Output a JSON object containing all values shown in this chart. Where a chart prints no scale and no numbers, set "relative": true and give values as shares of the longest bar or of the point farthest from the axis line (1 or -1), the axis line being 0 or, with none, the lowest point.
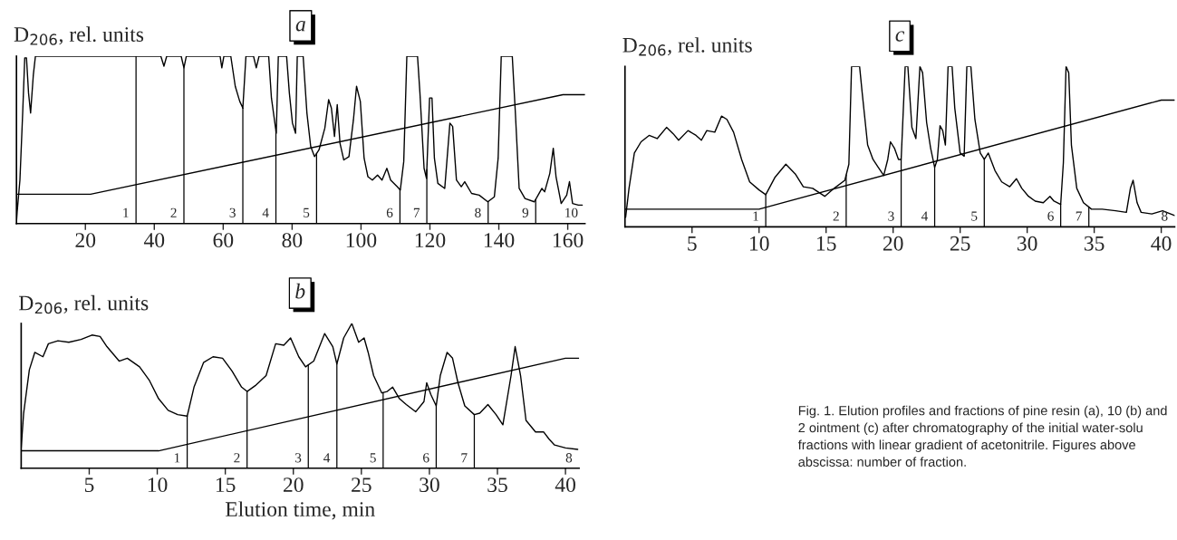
{
  "chart_data": [
    {
      "type": "line",
      "title": "a",
      "ylabel": "D$_{206}$, rel. units",
      "relative": true,
      "xlim": [
        0,
        165
      ],
      "xticks": [
        20,
        40,
        60,
        80,
        100,
        120,
        140,
        160
      ],
      "tick_labels": "x",
      "grid": false,
      "legend": false,
      "marker": "none",
      "line_style": "solid",
      "series": [
        {
          "color": "#000000",
          "x": [
            0,
            0.2,
            1.0,
            1.8,
            2.4,
            2.9,
            3.5,
            4.1,
            4.9,
            5.5,
            41.9,
            42.8,
            43.6,
            47.8,
            48.6,
            49.3,
            59.1,
            59.6,
            60.2,
            62.2,
            63.5,
            64.8,
            65.7,
            66.6,
            68.8,
            69.6,
            70.4,
            73.2,
            74.0,
            75.4,
            76.0,
            78.4,
            79.2,
            80.1,
            81.0,
            81.5,
            83.2,
            84.3,
            85.4,
            86.5,
            87.8,
            89.5,
            90.6,
            91.4,
            92.3,
            93.1,
            93.9,
            95.0,
            96.5,
            97.8,
            98.7,
            99.8,
            100.9,
            102.0,
            103.3,
            104.8,
            106.1,
            107.5,
            108.6,
            110.5,
            111.4,
            112.4,
            113.3,
            116.4,
            117.1,
            118.3,
            119.0,
            119.9,
            120.6,
            121.3,
            122.3,
            124.3,
            125.8,
            126.6,
            127.7,
            129.1,
            130.1,
            132.1,
            134.3,
            136.8,
            138.7,
            139.8,
            140.7,
            143.9,
            144.8,
            145.9,
            147.6,
            150.3,
            151.4,
            152.5,
            153.3,
            154.8,
            155.8,
            156.6,
            158.1,
            159.7,
            160.5,
            161.4,
            163.1,
            164.2
          ],
          "values": [
            0.01,
            0.07,
            0.26,
            0.66,
            0.99,
            0.99,
            0.78,
            0.66,
            0.89,
            1.0,
            1.0,
            0.94,
            1.0,
            1.0,
            0.93,
            1.0,
            1.0,
            0.93,
            1.0,
            1.0,
            0.82,
            0.73,
            0.69,
            1.0,
            1.0,
            0.93,
            1.0,
            1.0,
            0.75,
            0.54,
            1.0,
            1.0,
            0.78,
            0.6,
            0.54,
            1.0,
            1.0,
            0.66,
            0.46,
            0.4,
            0.44,
            0.57,
            0.74,
            0.69,
            0.52,
            0.71,
            0.48,
            0.38,
            0.4,
            0.62,
            0.82,
            0.73,
            0.39,
            0.28,
            0.26,
            0.29,
            0.26,
            0.33,
            0.26,
            0.22,
            0.2,
            0.37,
            1.0,
            1.0,
            0.78,
            0.33,
            0.27,
            0.75,
            0.75,
            0.39,
            0.24,
            0.21,
            0.6,
            0.58,
            0.26,
            0.22,
            0.25,
            0.18,
            0.17,
            0.13,
            0.16,
            0.39,
            1.0,
            1.0,
            0.66,
            0.21,
            0.15,
            0.13,
            0.17,
            0.21,
            0.19,
            0.3,
            0.45,
            0.28,
            0.12,
            0.17,
            0.25,
            0.12,
            0.11,
            0.11
          ]
        },
        {
          "color": "#000000",
          "x": [
            0,
            21.5,
            158.6,
            165
          ],
          "values": [
            0.175,
            0.175,
            0.77,
            0.77
          ]
        }
      ],
      "ref_lines": [
        {
          "axis": "x",
          "value": 34.7
        },
        {
          "axis": "x",
          "value": 48.6
        },
        {
          "axis": "x",
          "value": 65.7
        },
        {
          "axis": "x",
          "value": 75.3
        },
        {
          "axis": "x",
          "value": 87.1
        },
        {
          "axis": "x",
          "value": 111.3
        },
        {
          "axis": "x",
          "value": 119.1
        },
        {
          "axis": "x",
          "value": 136.9
        },
        {
          "axis": "x",
          "value": 150.7
        }
      ],
      "annotations": [
        "1",
        "2",
        "3",
        "4",
        "5",
        "6",
        "7",
        "8",
        "9",
        "10"
      ]
    },
    {
      "type": "line",
      "title": "b",
      "ylabel": "D$_{206}$, rel. units",
      "xlabel": "Elution time, min",
      "relative": true,
      "xlim": [
        0,
        41
      ],
      "xticks": [
        5,
        10,
        15,
        20,
        25,
        30,
        35,
        40
      ],
      "tick_labels": "x",
      "grid": false,
      "legend": false,
      "marker": "none",
      "line_style": "solid",
      "series": [
        {
          "color": "#000000",
          "x": [
            0,
            0.18,
            0.6,
            1.0,
            1.6,
            2.0,
            2.7,
            3.5,
            4.4,
            5.2,
            5.8,
            6.3,
            7.2,
            7.8,
            8.7,
            9.4,
            10.1,
            10.8,
            11.5,
            12.2,
            12.7,
            13.4,
            14.1,
            14.8,
            15.5,
            16.2,
            16.6,
            17.2,
            18.0,
            18.7,
            19.3,
            19.8,
            20.4,
            20.9,
            21.5,
            22.3,
            22.9,
            23.2,
            23.7,
            24.3,
            24.8,
            25.2,
            25.5,
            25.9,
            26.5,
            26.9,
            27.3,
            27.8,
            28.3,
            29.0,
            29.6,
            29.8,
            30.1,
            30.5,
            30.8,
            31.3,
            31.7,
            32.1,
            32.6,
            33.3,
            33.7,
            34.3,
            34.9,
            35.4,
            36.0,
            36.3,
            36.7,
            37.1,
            37.8,
            38.4,
            38.8,
            39.2,
            40.0,
            40.9
          ],
          "values": [
            0.14,
            0.38,
            0.68,
            0.8,
            0.77,
            0.86,
            0.88,
            0.87,
            0.89,
            0.92,
            0.91,
            0.84,
            0.74,
            0.76,
            0.7,
            0.61,
            0.48,
            0.4,
            0.37,
            0.36,
            0.56,
            0.73,
            0.77,
            0.76,
            0.67,
            0.56,
            0.53,
            0.57,
            0.64,
            0.86,
            0.85,
            0.9,
            0.77,
            0.7,
            0.74,
            0.93,
            0.84,
            0.72,
            0.9,
            1.0,
            0.87,
            0.9,
            0.8,
            0.64,
            0.52,
            0.53,
            0.56,
            0.48,
            0.44,
            0.39,
            0.46,
            0.59,
            0.51,
            0.43,
            0.64,
            0.8,
            0.76,
            0.59,
            0.43,
            0.37,
            0.38,
            0.44,
            0.37,
            0.3,
            0.64,
            0.84,
            0.64,
            0.33,
            0.25,
            0.25,
            0.2,
            0.16,
            0.14,
            0.13
          ]
        },
        {
          "color": "#000000",
          "x": [
            0,
            10.1,
            40.0,
            41
          ],
          "values": [
            0.12,
            0.12,
            0.76,
            0.76
          ]
        }
      ],
      "ref_lines": [
        {
          "axis": "x",
          "value": 12.2
        },
        {
          "axis": "x",
          "value": 16.6
        },
        {
          "axis": "x",
          "value": 21.1
        },
        {
          "axis": "x",
          "value": 23.2
        },
        {
          "axis": "x",
          "value": 26.6
        },
        {
          "axis": "x",
          "value": 30.5
        },
        {
          "axis": "x",
          "value": 33.3
        }
      ],
      "annotations": [
        "1",
        "2",
        "3",
        "4",
        "5",
        "6",
        "7",
        "8"
      ]
    },
    {
      "type": "line",
      "title": "c",
      "ylabel": "D$_{206}$, rel. units",
      "relative": true,
      "xlim": [
        0,
        41
      ],
      "xticks": [
        5,
        10,
        15,
        20,
        25,
        30,
        35,
        40
      ],
      "tick_labels": "x",
      "grid": false,
      "legend": false,
      "marker": "none",
      "line_style": "solid",
      "series": [
        {
          "color": "#000000",
          "x": [
            0.05,
            0.3,
            0.7,
            1.2,
            1.8,
            2.4,
            3.1,
            3.6,
            4.0,
            4.7,
            5.3,
            5.7,
            6.1,
            6.7,
            7.2,
            7.6,
            8.1,
            8.7,
            9.3,
            10.0,
            10.5,
            11.2,
            12.0,
            12.7,
            13.3,
            14.0,
            14.9,
            15.6,
            16.4,
            16.7,
            16.9,
            17.5,
            17.7,
            18.1,
            18.5,
            18.9,
            19.3,
            19.6,
            19.8,
            20.1,
            20.4,
            20.6,
            20.9,
            21.1,
            21.4,
            21.7,
            22.0,
            22.2,
            22.5,
            22.8,
            23.1,
            23.3,
            23.5,
            23.7,
            23.9,
            24.1,
            24.4,
            24.6,
            25.0,
            25.3,
            25.5,
            25.8,
            26.1,
            26.5,
            26.8,
            27.1,
            27.6,
            28.1,
            28.7,
            29.2,
            29.6,
            30.1,
            30.6,
            31.2,
            31.7,
            32.0,
            32.5,
            32.7,
            32.9,
            33.1,
            33.3,
            33.7,
            34.2,
            34.8,
            35.6,
            36.6,
            37.4,
            37.7,
            37.9,
            38.2,
            38.5,
            39.3,
            40.1,
            41.0
          ],
          "values": [
            0.06,
            0.24,
            0.46,
            0.53,
            0.57,
            0.55,
            0.62,
            0.58,
            0.54,
            0.6,
            0.57,
            0.54,
            0.6,
            0.59,
            0.69,
            0.67,
            0.59,
            0.42,
            0.28,
            0.23,
            0.2,
            0.31,
            0.39,
            0.33,
            0.25,
            0.24,
            0.19,
            0.24,
            0.29,
            0.39,
            1.0,
            1.0,
            0.83,
            0.51,
            0.42,
            0.37,
            0.32,
            0.42,
            0.53,
            0.49,
            0.42,
            0.42,
            1.0,
            1.0,
            0.62,
            0.55,
            1.0,
            0.96,
            0.65,
            0.49,
            0.37,
            0.42,
            0.63,
            0.6,
            0.51,
            1.0,
            1.0,
            0.74,
            0.46,
            0.44,
            1.0,
            1.0,
            0.67,
            0.46,
            0.42,
            0.46,
            0.35,
            0.28,
            0.25,
            0.3,
            0.24,
            0.19,
            0.16,
            0.15,
            0.19,
            0.16,
            0.14,
            0.4,
            1.0,
            0.96,
            0.51,
            0.24,
            0.15,
            0.11,
            0.11,
            0.1,
            0.09,
            0.24,
            0.29,
            0.15,
            0.09,
            0.08,
            0.1,
            0.07
          ]
        },
        {
          "color": "#000000",
          "x": [
            0,
            10.0,
            40.0,
            41
          ],
          "values": [
            0.11,
            0.11,
            0.79,
            0.79
          ]
        }
      ],
      "ref_lines": [
        {
          "axis": "x",
          "value": 10.5
        },
        {
          "axis": "x",
          "value": 16.5
        },
        {
          "axis": "x",
          "value": 20.6
        },
        {
          "axis": "x",
          "value": 23.1
        },
        {
          "axis": "x",
          "value": 26.8
        },
        {
          "axis": "x",
          "value": 32.5
        },
        {
          "axis": "x",
          "value": 34.6
        }
      ],
      "annotations": [
        "1",
        "2",
        "3",
        "4",
        "5",
        "6",
        "7",
        "8",
        "Fig. 1. Elution profiles and fractions of pine resin (a), 10 (b) and 2 ointment (c) after chromatography of the initial water-solu fractions with linear gradient of acetonitrile. Figures above abscissa: number of fraction."
      ]
    }
  ]
}
